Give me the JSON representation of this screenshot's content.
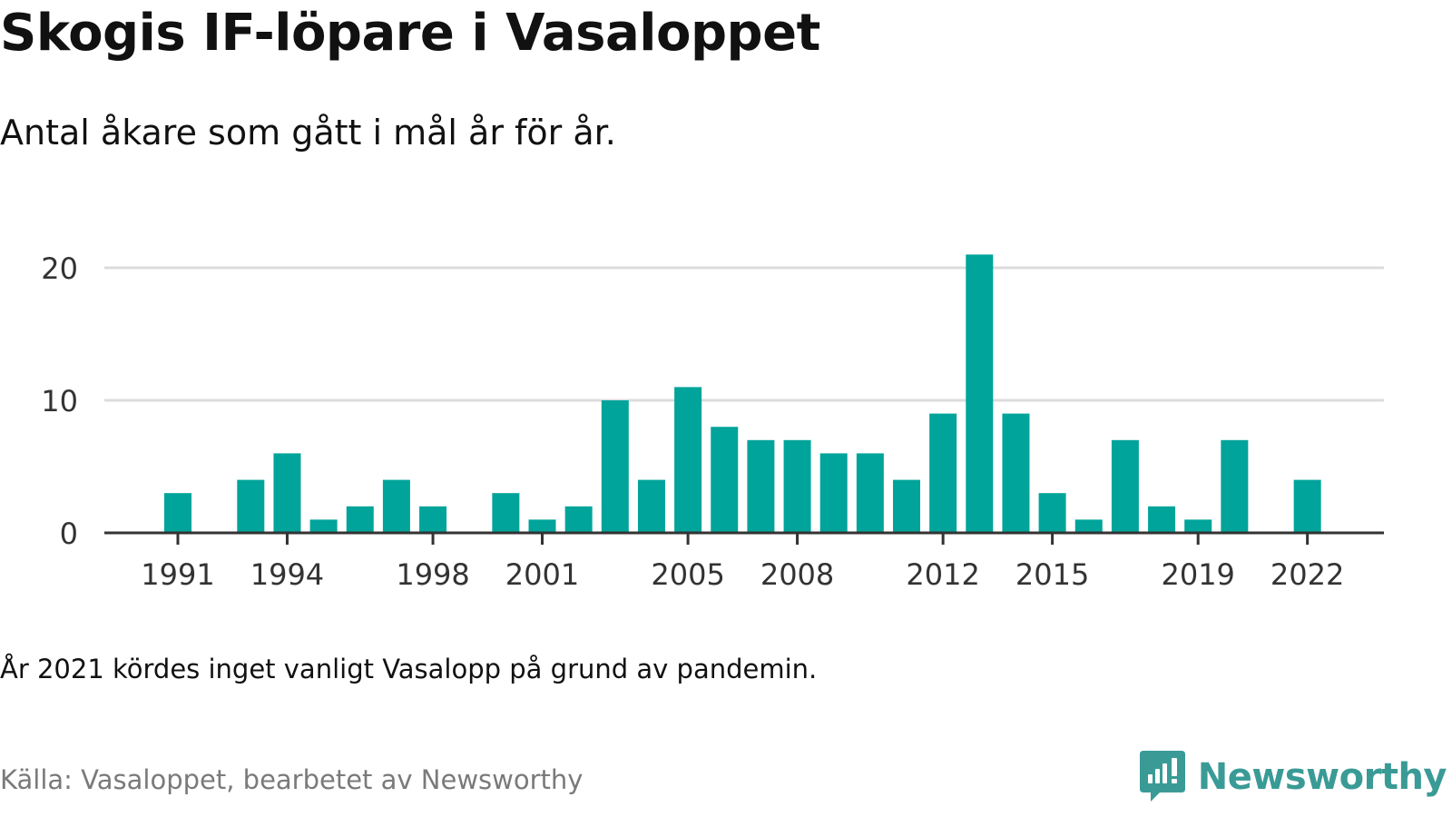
{
  "title": "Skogis IF-löpare i Vasaloppet",
  "subtitle": "Antal åkare som gått i mål år för år.",
  "note": "År 2021 kördes inget vanligt Vasalopp på grund av pandemin.",
  "source": "Källa: Vasaloppet, bearbetet av Newsworthy",
  "brand": {
    "name": "Newsworthy",
    "icon": "newsworthy-logo-icon",
    "color": "#3a9b96"
  },
  "chart_data": {
    "type": "bar",
    "title": "Skogis IF-löpare i Vasaloppet",
    "subtitle": "Antal åkare som gått i mål år för år.",
    "xlabel": "",
    "ylabel": "",
    "ylim": [
      0,
      22
    ],
    "y_ticks": [
      0,
      10,
      20
    ],
    "x_ticks": [
      1991,
      1994,
      1998,
      2001,
      2005,
      2008,
      2012,
      2015,
      2019,
      2022
    ],
    "grid": true,
    "bar_color": "#00a49a",
    "categories": [
      1989,
      1990,
      1991,
      1992,
      1993,
      1994,
      1995,
      1996,
      1997,
      1998,
      1999,
      2000,
      2001,
      2002,
      2003,
      2004,
      2005,
      2006,
      2007,
      2008,
      2009,
      2010,
      2011,
      2012,
      2013,
      2014,
      2015,
      2016,
      2017,
      2018,
      2019,
      2020,
      2021,
      2022
    ],
    "values": [
      null,
      null,
      3,
      0,
      4,
      6,
      1,
      2,
      4,
      2,
      0,
      3,
      1,
      2,
      10,
      4,
      11,
      8,
      7,
      7,
      6,
      6,
      4,
      9,
      21,
      9,
      3,
      1,
      7,
      2,
      1,
      7,
      null,
      4
    ]
  }
}
